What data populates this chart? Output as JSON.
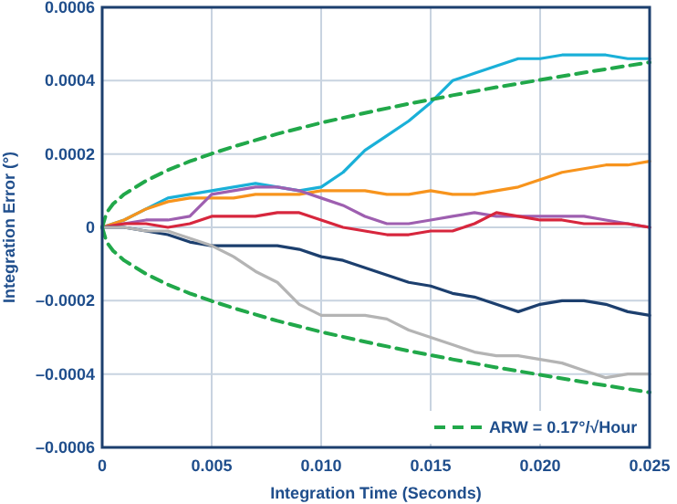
{
  "chart_data": {
    "type": "line",
    "xlabel": "Integration Time (Seconds)",
    "ylabel": "Integration Error (°)",
    "x": [
      0,
      0.001,
      0.002,
      0.003,
      0.004,
      0.005,
      0.006,
      0.007,
      0.008,
      0.009,
      0.01,
      0.011,
      0.012,
      0.013,
      0.014,
      0.015,
      0.016,
      0.017,
      0.018,
      0.019,
      0.02,
      0.021,
      0.022,
      0.023,
      0.024,
      0.025
    ],
    "series": [
      {
        "color": "#1ab0d8",
        "values": [
          0,
          2e-05,
          5e-05,
          8e-05,
          9e-05,
          0.0001,
          0.00011,
          0.00012,
          0.00011,
          0.0001,
          0.00011,
          0.00015,
          0.00021,
          0.00025,
          0.00029,
          0.00034,
          0.0004,
          0.00042,
          0.00044,
          0.00046,
          0.00046,
          0.00047,
          0.00047,
          0.00047,
          0.00046,
          0.00046
        ]
      },
      {
        "color": "#f7941d",
        "values": [
          0,
          2e-05,
          5e-05,
          7e-05,
          8e-05,
          8e-05,
          8e-05,
          9e-05,
          9e-05,
          9e-05,
          0.0001,
          0.0001,
          0.0001,
          9e-05,
          9e-05,
          0.0001,
          9e-05,
          9e-05,
          0.0001,
          0.00011,
          0.00013,
          0.00015,
          0.00016,
          0.00017,
          0.00017,
          0.00018
        ]
      },
      {
        "color": "#9e5fb0",
        "values": [
          0,
          1e-05,
          2e-05,
          2e-05,
          3e-05,
          9e-05,
          0.0001,
          0.00011,
          0.00011,
          0.0001,
          8e-05,
          6e-05,
          3e-05,
          1e-05,
          1e-05,
          2e-05,
          3e-05,
          4e-05,
          3e-05,
          3e-05,
          3e-05,
          3e-05,
          3e-05,
          2e-05,
          1e-05,
          0
        ]
      },
      {
        "color": "#d7263d",
        "values": [
          0,
          1e-05,
          1e-05,
          0,
          1e-05,
          3e-05,
          3e-05,
          3e-05,
          4e-05,
          4e-05,
          2e-05,
          0,
          -1e-05,
          -2e-05,
          -2e-05,
          -1e-05,
          -1e-05,
          1e-05,
          4e-05,
          3e-05,
          2e-05,
          2e-05,
          1e-05,
          1e-05,
          1e-05,
          0
        ]
      },
      {
        "color": "#1c3f6e",
        "values": [
          0,
          0,
          -1e-05,
          -2e-05,
          -4e-05,
          -5e-05,
          -5e-05,
          -5e-05,
          -5e-05,
          -6e-05,
          -8e-05,
          -9e-05,
          -0.00011,
          -0.00013,
          -0.00015,
          -0.00016,
          -0.00018,
          -0.00019,
          -0.00021,
          -0.00023,
          -0.00021,
          -0.0002,
          -0.0002,
          -0.00021,
          -0.00023,
          -0.00024
        ]
      },
      {
        "color": "#b4b4b4",
        "values": [
          0,
          0,
          -1e-05,
          -1e-05,
          -3e-05,
          -5e-05,
          -8e-05,
          -0.00012,
          -0.00015,
          -0.00021,
          -0.00024,
          -0.00024,
          -0.00024,
          -0.00025,
          -0.00028,
          -0.0003,
          -0.00032,
          -0.00034,
          -0.00035,
          -0.00035,
          -0.00036,
          -0.00037,
          -0.00039,
          -0.00041,
          -0.0004,
          -0.0004
        ]
      },
      {
        "name": "ARW = 0.17°/√Hour",
        "color": "#21a84a",
        "line_style": "dashed",
        "x": [
          0,
          0.0002,
          0.0005,
          0.001,
          0.002,
          0.003,
          0.004,
          0.005,
          0.006,
          0.008,
          0.01,
          0.012,
          0.014,
          0.016,
          0.018,
          0.02,
          0.022,
          0.025
        ],
        "values": [
          0,
          4e-05,
          6.4e-05,
          9e-05,
          0.000127,
          0.000156,
          0.00018,
          0.000201,
          0.00022,
          0.000255,
          0.000285,
          0.000312,
          0.000337,
          0.00036,
          0.000382,
          0.000402,
          0.000422,
          0.00045
        ]
      },
      {
        "color": "#21a84a",
        "line_style": "dashed",
        "x": [
          0,
          0.0002,
          0.0005,
          0.001,
          0.002,
          0.003,
          0.004,
          0.005,
          0.006,
          0.008,
          0.01,
          0.012,
          0.014,
          0.016,
          0.018,
          0.02,
          0.022,
          0.025
        ],
        "values": [
          0,
          -4e-05,
          -6.4e-05,
          -9e-05,
          -0.000127,
          -0.000156,
          -0.00018,
          -0.000201,
          -0.00022,
          -0.000255,
          -0.000285,
          -0.000312,
          -0.000337,
          -0.00036,
          -0.000382,
          -0.000402,
          -0.000422,
          -0.00045
        ]
      }
    ],
    "xlim": [
      0,
      0.025
    ],
    "xticks": [
      0,
      {
        "value": 0.005,
        "label": "0.005"
      },
      {
        "value": 0.01,
        "label": "0.010"
      },
      {
        "value": 0.015,
        "label": "0.015"
      },
      {
        "value": 0.02,
        "label": "0.020"
      },
      {
        "value": 0.025,
        "label": "0.025"
      }
    ],
    "ylim": [
      -0.0006,
      0.0006
    ],
    "yticks": [
      {
        "value": -0.0006,
        "label": "–0.0006"
      },
      {
        "value": -0.0004,
        "label": "–0.0004"
      },
      {
        "value": -0.0002,
        "label": "–0.0002"
      },
      0,
      0.0002,
      0.0004,
      0.0006
    ],
    "grid": true,
    "legend": "bottom right",
    "marker": "none",
    "line_style": "solid"
  }
}
